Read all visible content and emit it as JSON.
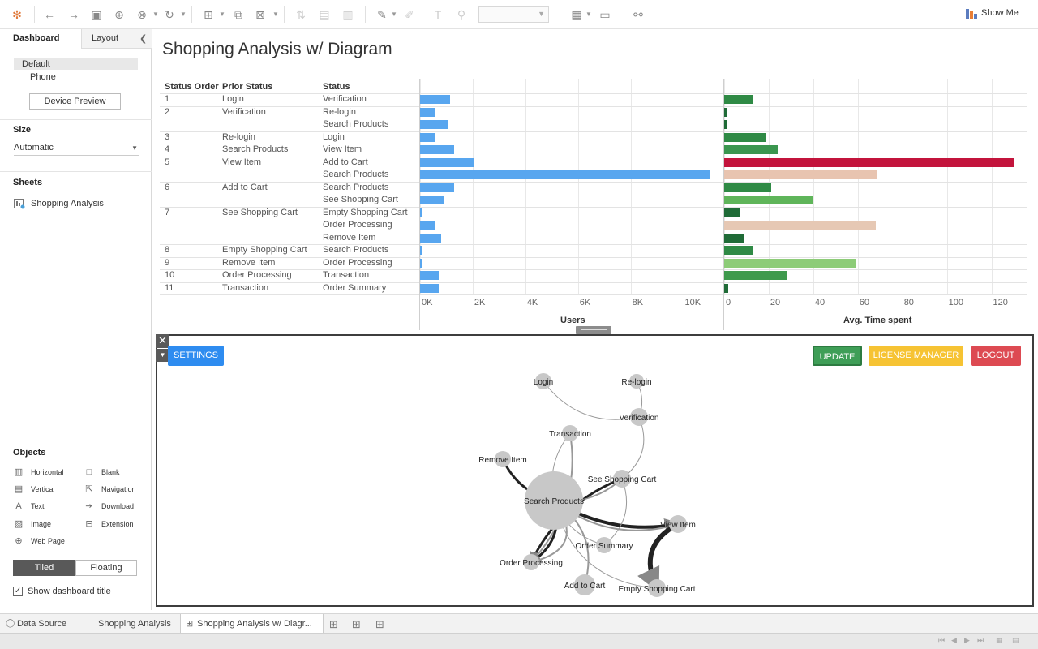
{
  "toolbar": {
    "show_me_label": "Show Me"
  },
  "left_panel": {
    "tab_dashboard": "Dashboard",
    "tab_layout": "Layout",
    "device_default": "Default",
    "device_phone": "Phone",
    "device_preview": "Device Preview",
    "size_heading": "Size",
    "size_value": "Automatic",
    "sheets_heading": "Sheets",
    "sheet_item": "Shopping Analysis",
    "objects_heading": "Objects",
    "objects": [
      {
        "label": "Horizontal",
        "icon": "horizontal-icon"
      },
      {
        "label": "Blank",
        "icon": "blank-icon"
      },
      {
        "label": "Vertical",
        "icon": "vertical-icon"
      },
      {
        "label": "Navigation",
        "icon": "navigation-icon"
      },
      {
        "label": "Text",
        "icon": "text-icon"
      },
      {
        "label": "Download",
        "icon": "download-icon"
      },
      {
        "label": "Image",
        "icon": "image-icon"
      },
      {
        "label": "Extension",
        "icon": "extension-icon"
      },
      {
        "label": "Web Page",
        "icon": "web-page-icon"
      }
    ],
    "tiled": "Tiled",
    "floating": "Floating",
    "show_title": "Show dashboard title"
  },
  "dashboard": {
    "title": "Shopping Analysis w/ Diagram"
  },
  "table": {
    "headers": {
      "status_order": "Status Order",
      "prior_status": "Prior Status",
      "status": "Status"
    },
    "rows": [
      {
        "order": "1",
        "prior": "Login",
        "status": "Verification",
        "users": 1150,
        "time": 13,
        "color": "#2f8a45"
      },
      {
        "order": "2",
        "prior": "Verification",
        "status": "Re-login",
        "users": 550,
        "time": 1,
        "color": "#1f6b37"
      },
      {
        "order": "",
        "prior": "",
        "status": "Search Products",
        "users": 1050,
        "time": 1,
        "color": "#1f6b37"
      },
      {
        "order": "3",
        "prior": "Re-login",
        "status": "Login",
        "users": 550,
        "time": 19,
        "color": "#2f8a45"
      },
      {
        "order": "4",
        "prior": "Search Products",
        "status": "View Item",
        "users": 1300,
        "time": 24,
        "color": "#3a964f"
      },
      {
        "order": "5",
        "prior": "View Item",
        "status": "Add to Cart",
        "users": 2050,
        "time": 130,
        "color": "#c3143c"
      },
      {
        "order": "",
        "prior": "",
        "status": "Search Products",
        "users": 11000,
        "time": 69,
        "color": "#e8c4b0"
      },
      {
        "order": "6",
        "prior": "Add to Cart",
        "status": "Search Products",
        "users": 1300,
        "time": 21,
        "color": "#2f8a45"
      },
      {
        "order": "",
        "prior": "",
        "status": "See Shopping Cart",
        "users": 900,
        "time": 40,
        "color": "#5fb55a"
      },
      {
        "order": "7",
        "prior": "See Shopping Cart",
        "status": "Empty Shopping Cart",
        "users": 60,
        "time": 7,
        "color": "#1f6b37"
      },
      {
        "order": "",
        "prior": "",
        "status": "Order Processing",
        "users": 600,
        "time": 68,
        "color": "#e6c8b4"
      },
      {
        "order": "",
        "prior": "",
        "status": "Remove Item",
        "users": 800,
        "time": 9,
        "color": "#1f6b37"
      },
      {
        "order": "8",
        "prior": "Empty Shopping Cart",
        "status": "Search Products",
        "users": 0,
        "time": 13,
        "color": "#2f8a45"
      },
      {
        "order": "9",
        "prior": "Remove Item",
        "status": "Order Processing",
        "users": 100,
        "time": 59,
        "color": "#8dcc78"
      },
      {
        "order": "10",
        "prior": "Order Processing",
        "status": "Transaction",
        "users": 700,
        "time": 28,
        "color": "#3f9a4d"
      },
      {
        "order": "11",
        "prior": "Transaction",
        "status": "Order Summary",
        "users": 700,
        "time": 2,
        "color": "#1f6b37"
      }
    ]
  },
  "chart_data": {
    "type": "bar",
    "users_axis": {
      "title": "Users",
      "ticks": [
        "0K",
        "2K",
        "4K",
        "6K",
        "8K",
        "10K"
      ],
      "range": [
        0,
        11000
      ]
    },
    "time_axis": {
      "title": "Avg. Time spent",
      "ticks": [
        "0",
        "20",
        "40",
        "60",
        "80",
        "100",
        "120"
      ],
      "range": [
        0,
        130
      ]
    }
  },
  "extension": {
    "settings": "SETTINGS",
    "update": "UPDATE",
    "license_manager": "LICENSE MANAGER",
    "logout": "LOGOUT",
    "nodes": [
      {
        "label": "Login"
      },
      {
        "label": "Re-login"
      },
      {
        "label": "Verification"
      },
      {
        "label": "Transaction"
      },
      {
        "label": "Remove Item"
      },
      {
        "label": "See Shopping Cart"
      },
      {
        "label": "Search Products"
      },
      {
        "label": "View Item"
      },
      {
        "label": "Order Summary"
      },
      {
        "label": "Order Processing"
      },
      {
        "label": "Add to Cart"
      },
      {
        "label": "Empty Shopping Cart"
      }
    ]
  },
  "bottom_tabs": {
    "data_source": "Data Source",
    "shopping_analysis": "Shopping Analysis",
    "diagram_tab": "Shopping Analysis w/ Diagr..."
  }
}
